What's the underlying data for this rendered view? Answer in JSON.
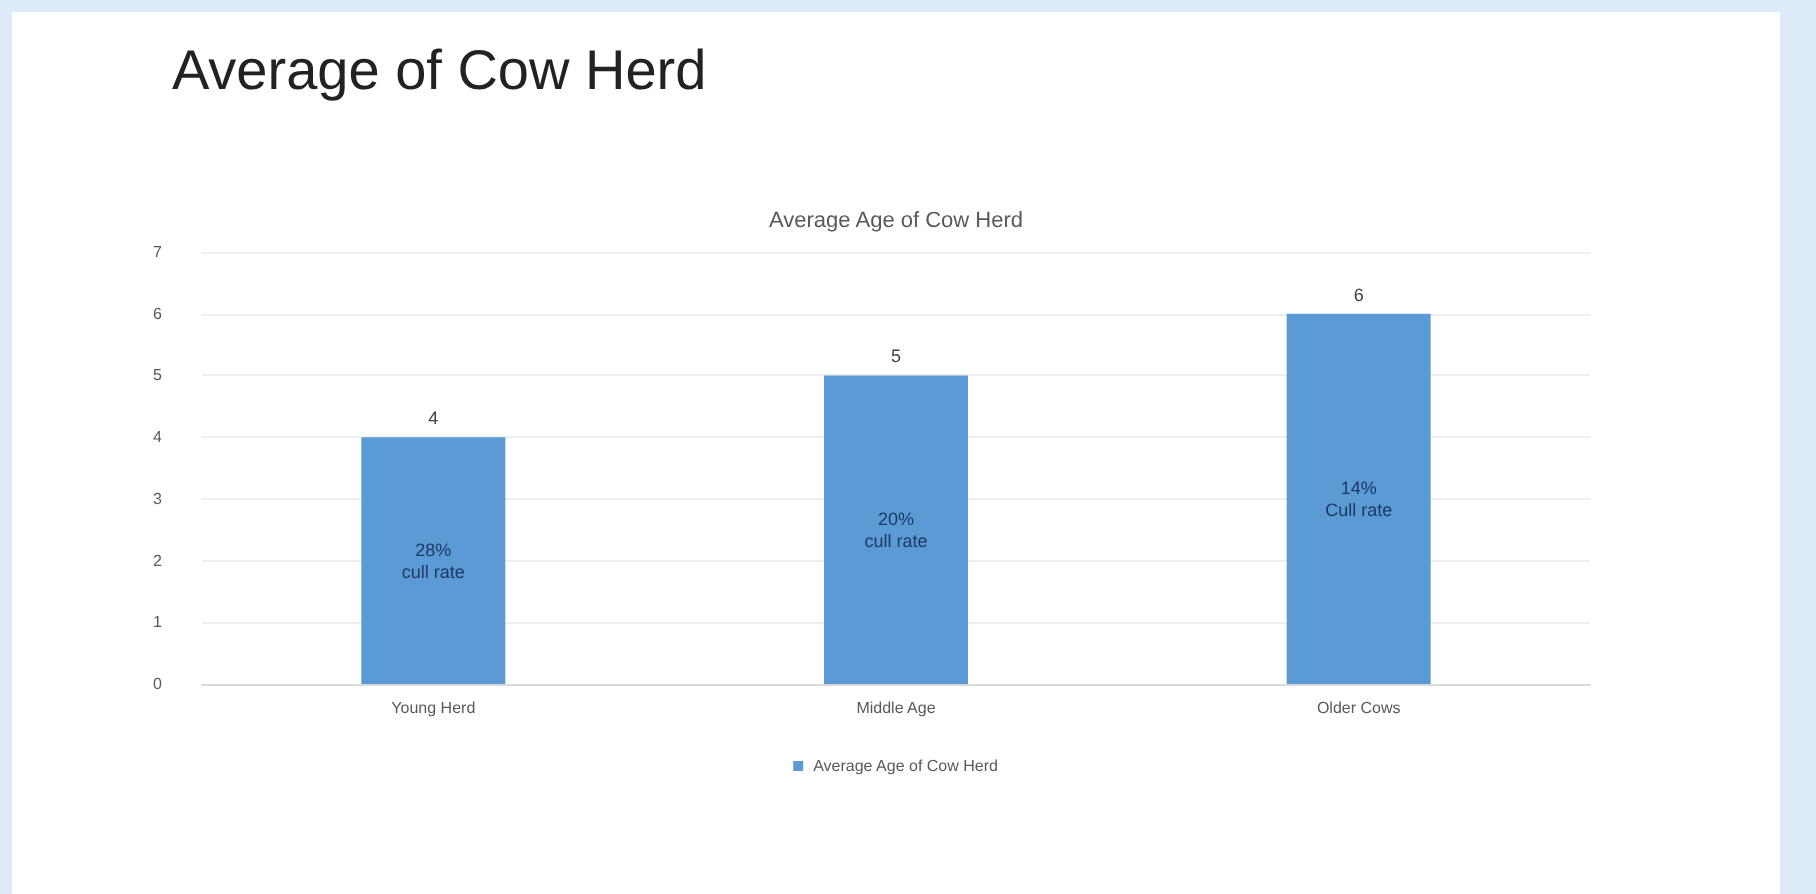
{
  "chart_data": {
    "type": "bar",
    "title": "Average of Cow Herd",
    "subtitle": "Average Age of Cow Herd",
    "categories": [
      "Young Herd",
      "Middle Age",
      "Older Cows"
    ],
    "series": [
      {
        "name": "Average Age of Cow Herd",
        "color": "#5b9bd5",
        "values": [
          4,
          5,
          6
        ]
      }
    ],
    "ylim": [
      0,
      7
    ],
    "yticks": [
      0,
      1,
      2,
      3,
      4,
      5,
      6,
      7
    ],
    "grid": "y",
    "legend": "bottom",
    "data_labels": true,
    "annotations": [
      "28%\ncull rate",
      "20%\ncull rate",
      "14%\nCull rate"
    ]
  }
}
